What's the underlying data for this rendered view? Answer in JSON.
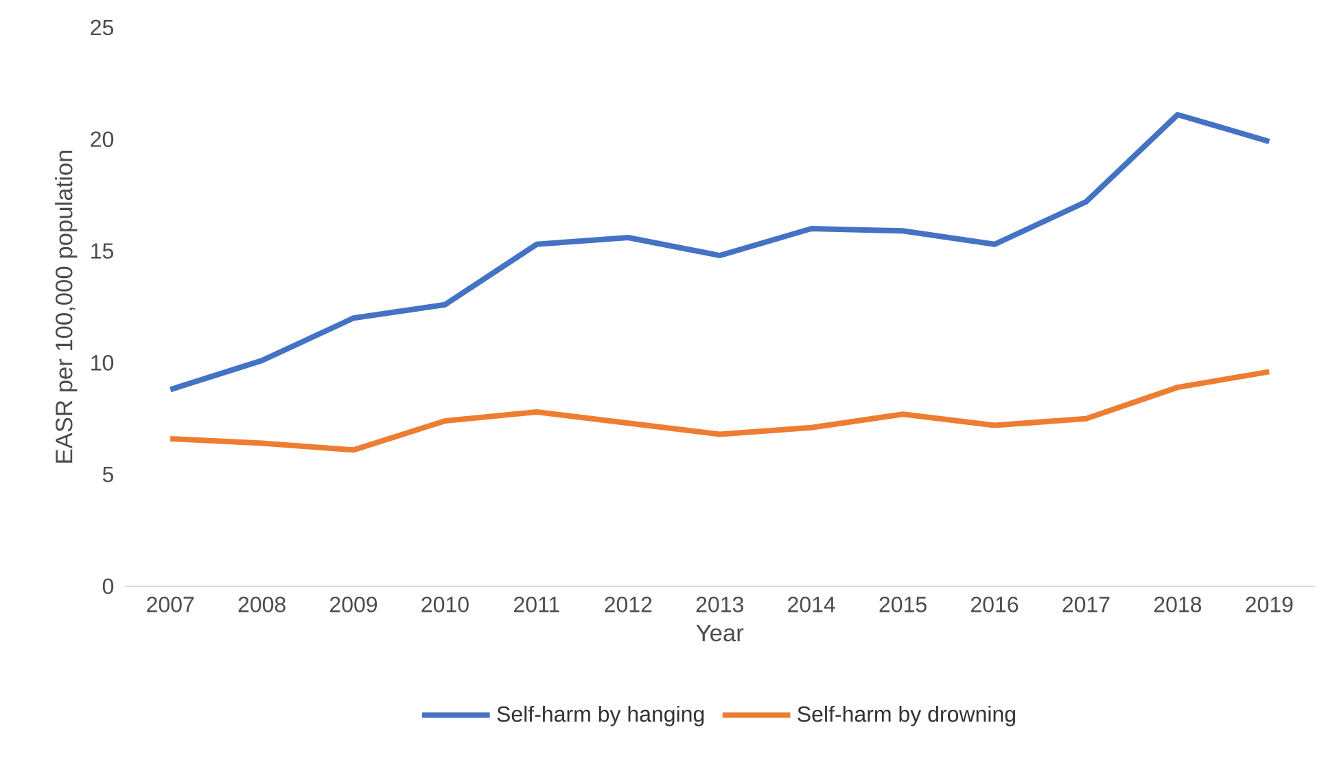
{
  "chart_data": {
    "type": "line",
    "xlabel": "Year",
    "ylabel": "EASR per 100,000 population",
    "categories": [
      "2007",
      "2008",
      "2009",
      "2010",
      "2011",
      "2012",
      "2013",
      "2014",
      "2015",
      "2016",
      "2017",
      "2018",
      "2019"
    ],
    "series": [
      {
        "name": "Self-harm by hanging",
        "color": "#4472c4",
        "values": [
          8.8,
          10.1,
          12.0,
          12.6,
          15.3,
          15.6,
          14.8,
          16.0,
          15.9,
          15.3,
          17.2,
          21.1,
          19.9
        ]
      },
      {
        "name": "Self-harm by drowning",
        "color": "#ed7d31",
        "values": [
          6.6,
          6.4,
          6.1,
          7.4,
          7.8,
          7.3,
          6.8,
          7.1,
          7.7,
          7.2,
          7.5,
          8.9,
          9.6
        ]
      }
    ],
    "ylim": [
      0,
      25
    ],
    "yticks": [
      0,
      5,
      10,
      15,
      20,
      25
    ],
    "grid": false,
    "legend": "bottom",
    "marker": "none",
    "line_style": "solid"
  }
}
